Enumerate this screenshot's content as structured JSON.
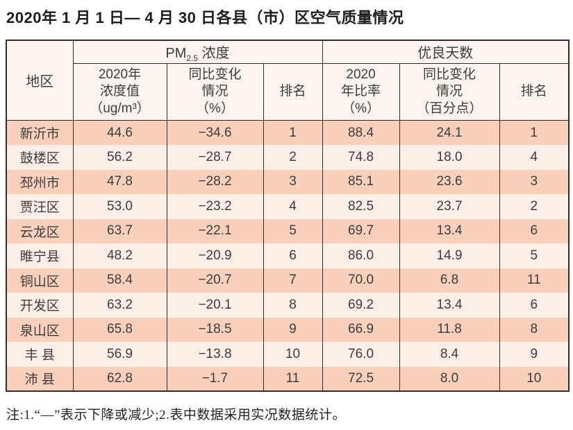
{
  "colors": {
    "row_odd_bg": "#f8d0bb",
    "row_even_bg": "#fbefe8",
    "header_bg": "#fcf4ee",
    "border": "#372b26",
    "text": "#3c3c3c",
    "title_text": "#1c1c1c"
  },
  "page": {
    "title": "2020年 1 月 1 日— 4 月 30 日各县（市）区空气质量情况",
    "note": "注:1.“—”表示下降或减少;2.表中数据采用实况数据统计。"
  },
  "table": {
    "region_header": "地区",
    "pm_group": {
      "prefix": "PM",
      "sub": "2.5",
      "suffix": " 浓度"
    },
    "good_days_group": "优良天数",
    "sub_headers": [
      "2020年\n浓度值\n（ug/m³）",
      "同比变化\n情况\n（%）",
      "排名",
      "2020\n年比率\n（%）",
      "同比变化\n情况\n（百分点）",
      "排名"
    ],
    "rows": [
      [
        "新沂市",
        "44.6",
        "−34.6",
        "1",
        "88.4",
        "24.1",
        "1"
      ],
      [
        "鼓楼区",
        "56.2",
        "−28.7",
        "2",
        "74.8",
        "18.0",
        "4"
      ],
      [
        "邳州市",
        "47.8",
        "−28.2",
        "3",
        "85.1",
        "23.6",
        "3"
      ],
      [
        "贾汪区",
        "53.0",
        "−23.2",
        "4",
        "82.5",
        "23.7",
        "2"
      ],
      [
        "云龙区",
        "63.7",
        "−22.1",
        "5",
        "69.7",
        "13.4",
        "6"
      ],
      [
        "睢宁县",
        "48.2",
        "−20.9",
        "6",
        "86.0",
        "14.9",
        "5"
      ],
      [
        "铜山区",
        "58.4",
        "−20.7",
        "7",
        "70.0",
        "6.8",
        "11"
      ],
      [
        "开发区",
        "63.2",
        "−20.1",
        "8",
        "69.2",
        "13.4",
        "6"
      ],
      [
        "泉山区",
        "65.8",
        "−18.5",
        "9",
        "66.9",
        "11.8",
        "8"
      ],
      [
        "丰 县",
        "56.9",
        "−13.8",
        "10",
        "76.0",
        "8.4",
        "9"
      ],
      [
        "沛 县",
        "62.8",
        "−1.7",
        "11",
        "72.5",
        "8.0",
        "10"
      ]
    ]
  }
}
